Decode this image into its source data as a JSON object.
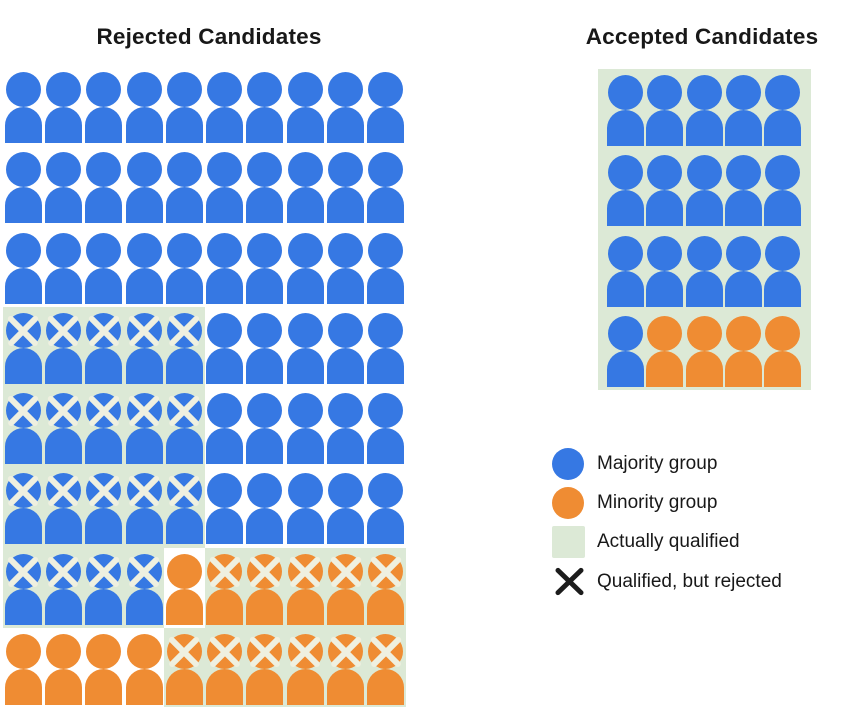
{
  "colors": {
    "majority": "#3678e3",
    "minority": "#ef8c33",
    "qualified_bg": "#dce9d6",
    "figure_x_stroke": "#eff0e0",
    "legend_x": "#1c1c1c",
    "text": "#181818"
  },
  "chart_data": {
    "type": "pictograph",
    "token_meaning": {
      "B": "majority group candidate (blue)",
      "O": "minority group candidate (orange)",
      "X suffix": "qualified, but rejected (cross drawn on head)",
      "qualified_regions": "green shaded cells = actually qualified"
    },
    "panels": [
      {
        "title": "Rejected Candidates",
        "columns": 10,
        "rows": [
          [
            "B",
            "B",
            "B",
            "B",
            "B",
            "B",
            "B",
            "B",
            "B",
            "B"
          ],
          [
            "B",
            "B",
            "B",
            "B",
            "B",
            "B",
            "B",
            "B",
            "B",
            "B"
          ],
          [
            "B",
            "B",
            "B",
            "B",
            "B",
            "B",
            "B",
            "B",
            "B",
            "B"
          ],
          [
            "BX",
            "BX",
            "BX",
            "BX",
            "BX",
            "B",
            "B",
            "B",
            "B",
            "B"
          ],
          [
            "BX",
            "BX",
            "BX",
            "BX",
            "BX",
            "B",
            "B",
            "B",
            "B",
            "B"
          ],
          [
            "BX",
            "BX",
            "BX",
            "BX",
            "BX",
            "B",
            "B",
            "B",
            "B",
            "B"
          ],
          [
            "BX",
            "BX",
            "BX",
            "BX",
            "O",
            "OX",
            "OX",
            "OX",
            "OX",
            "OX"
          ],
          [
            "O",
            "O",
            "O",
            "O",
            "OX",
            "OX",
            "OX",
            "OX",
            "OX",
            "OX"
          ]
        ],
        "qualified_regions": [
          {
            "row": 3,
            "col": 0,
            "rowspan": 3,
            "colspan": 5
          },
          {
            "row": 6,
            "col": 0,
            "rowspan": 1,
            "colspan": 4
          },
          {
            "row": 6,
            "col": 5,
            "rowspan": 1,
            "colspan": 5
          },
          {
            "row": 7,
            "col": 4,
            "rowspan": 1,
            "colspan": 6
          }
        ]
      },
      {
        "title": "Accepted Candidates",
        "columns": 5,
        "rows": [
          [
            "B",
            "B",
            "B",
            "B",
            "B"
          ],
          [
            "B",
            "B",
            "B",
            "B",
            "B"
          ],
          [
            "B",
            "B",
            "B",
            "B",
            "B"
          ],
          [
            "B",
            "O",
            "O",
            "O",
            "O"
          ]
        ],
        "qualified_regions": [
          {
            "row": 0,
            "col": 0,
            "rowspan": 4,
            "colspan": 5
          }
        ]
      }
    ],
    "summary": {
      "rejected_total": 80,
      "rejected_majority": 64,
      "rejected_minority": 16,
      "qualified_but_rejected": 30,
      "accepted_total": 20,
      "accepted_majority": 16,
      "accepted_minority": 4
    },
    "legend": {
      "items": [
        {
          "key": "majority",
          "swatch": "circle",
          "label": "Majority group"
        },
        {
          "key": "minority",
          "swatch": "circle",
          "label": "Minority group"
        },
        {
          "key": "qualified",
          "swatch": "square",
          "label": "Actually qualified"
        },
        {
          "key": "rejected-x",
          "swatch": "x",
          "label": "Qualified, but rejected"
        }
      ]
    }
  }
}
